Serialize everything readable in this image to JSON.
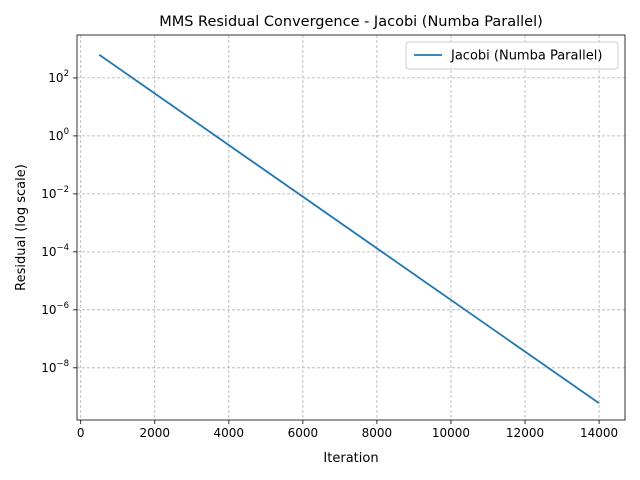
{
  "chart_data": {
    "type": "line",
    "title": "MMS Residual Convergence - Jacobi (Numba Parallel)",
    "xlabel": "Iteration",
    "ylabel": "Residual (log scale)",
    "xscale": "linear",
    "yscale": "log",
    "xlim": [
      -100,
      14700
    ],
    "ylim_log10": [
      -9.8,
      3.48
    ],
    "x_ticks": [
      0,
      2000,
      4000,
      6000,
      8000,
      10000,
      12000,
      14000
    ],
    "y_ticks_log10": [
      2,
      0,
      -2,
      -4,
      -6,
      -8
    ],
    "y_tick_base": "10",
    "grid": true,
    "legend_position": "top-right",
    "series": [
      {
        "name": "Jacobi (Numba Parallel)",
        "color": "#1f77b4",
        "x": [
          500,
          14000
        ],
        "y": [
          630,
          6e-10
        ]
      }
    ]
  }
}
